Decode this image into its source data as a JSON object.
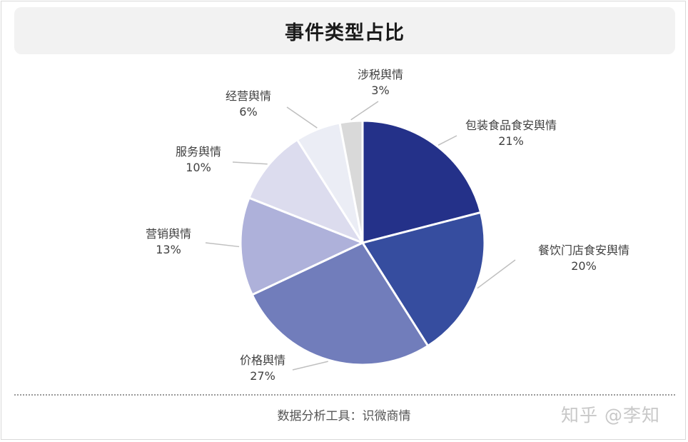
{
  "header": {
    "title": "事件类型占比"
  },
  "chart_data": {
    "type": "pie",
    "title": "事件类型占比",
    "start_angle_deg": 0,
    "direction": "clockwise",
    "slices": [
      {
        "label": "包装食品食安舆情",
        "value": 21,
        "value_label": "21%",
        "color": "#243189"
      },
      {
        "label": "餐饮门店食安舆情",
        "value": 20,
        "value_label": "20%",
        "color": "#364d9f"
      },
      {
        "label": "价格舆情",
        "value": 27,
        "value_label": "27%",
        "color": "#717dbb"
      },
      {
        "label": "营销舆情",
        "value": 13,
        "value_label": "13%",
        "color": "#aeb1da"
      },
      {
        "label": "服务舆情",
        "value": 10,
        "value_label": "10%",
        "color": "#dcdcee"
      },
      {
        "label": "经营舆情",
        "value": 6,
        "value_label": "6%",
        "color": "#ebedf5"
      },
      {
        "label": "涉税舆情",
        "value": 3,
        "value_label": "3%",
        "color": "#d9d9d9"
      }
    ]
  },
  "footer": {
    "source": "数据分析工具：识微商情",
    "watermark": "知乎 @李知"
  },
  "colors": {
    "title_background": "#f2f2f2",
    "leader_line": "#bfbfbf",
    "label_text": "#404040"
  }
}
